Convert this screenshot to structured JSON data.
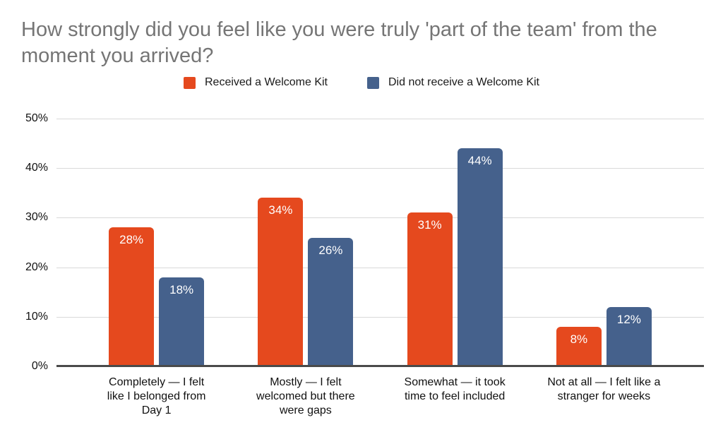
{
  "title": "How strongly did you feel like you were truly 'part of the team' from the moment you arrived?",
  "colors": {
    "title_text": "#757575",
    "gridline": "#d9d9d9",
    "axis_line": "#4a4a4a",
    "axis_text": "#111111",
    "value_label_text": "#ffffff",
    "background": "#ffffff",
    "series_orange": "#e5491e",
    "series_blue": "#45618c"
  },
  "chart_data": {
    "type": "bar",
    "title": "How strongly did you feel like you were truly 'part of the team' from the moment you arrived?",
    "categories": [
      "Completely — I felt like I belonged from Day 1",
      "Mostly — I felt welcomed but there were gaps",
      "Somewhat — it took time to feel included",
      "Not at all — I felt like a stranger for weeks"
    ],
    "series": [
      {
        "name": "Received a Welcome Kit",
        "color": "#e5491e",
        "values": [
          28,
          34,
          31,
          8
        ],
        "value_labels": [
          "28%",
          "34%",
          "31%",
          "8%"
        ]
      },
      {
        "name": "Did not receive a Welcome Kit",
        "color": "#45618c",
        "values": [
          18,
          26,
          44,
          12
        ],
        "value_labels": [
          "18%",
          "26%",
          "44%",
          "12%"
        ]
      }
    ],
    "xlabel": "",
    "ylabel": "",
    "ylim": [
      0,
      50
    ],
    "ytick_step": 10,
    "yticks_top_to_bottom": [
      "50%",
      "40%",
      "30%",
      "20%",
      "10%",
      "0%"
    ],
    "grid": true,
    "legend_position": "top",
    "value_label_position": "inside-top"
  }
}
